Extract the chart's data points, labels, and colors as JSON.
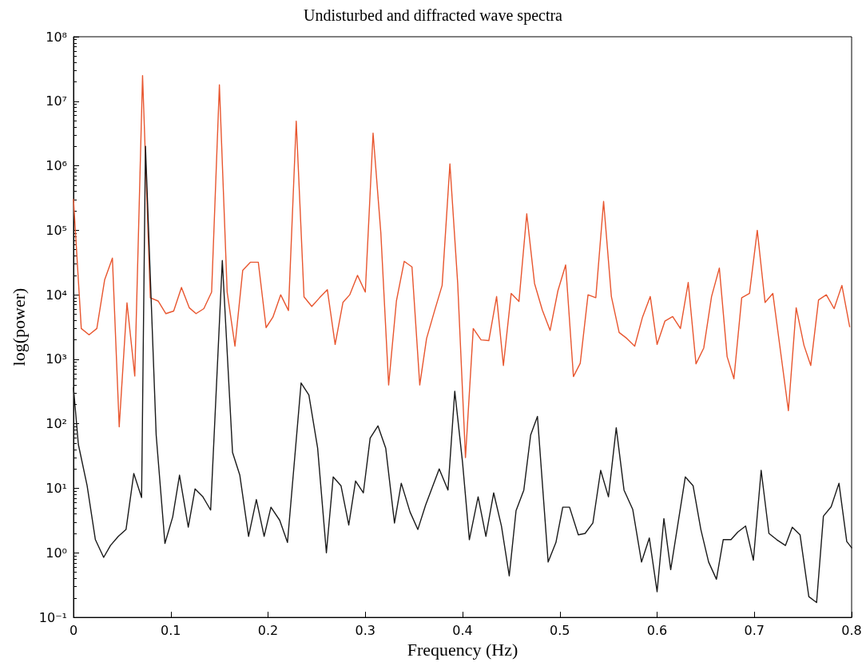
{
  "chart_data": {
    "type": "line",
    "title": "Undisturbed and diffracted wave spectra",
    "xlabel": "Frequency (Hz)",
    "ylabel": "log(power)",
    "log": "y",
    "grid": false,
    "marker": "none",
    "line_style": "solid",
    "xlim": [
      0,
      0.8
    ],
    "xticks": [
      0,
      0.1,
      0.2,
      0.3,
      0.4,
      0.5,
      0.6,
      0.7,
      0.8
    ],
    "ylim": [
      0.1,
      100000000
    ],
    "yticks": [
      {
        "value": 0.1,
        "label": "10⁻¹"
      },
      {
        "value": 1,
        "label": "10⁰"
      },
      {
        "value": 10,
        "label": "10¹"
      },
      {
        "value": 100,
        "label": "10²"
      },
      {
        "value": 1000,
        "label": "10³"
      },
      {
        "value": 10000,
        "label": "10⁴"
      },
      {
        "value": 100000,
        "label": "10⁵"
      },
      {
        "value": 1000000,
        "label": "10⁶"
      },
      {
        "value": 10000000,
        "label": "10⁷"
      },
      {
        "value": 100000000,
        "label": "10⁸"
      }
    ],
    "series": [
      {
        "color": "#e8562f",
        "x": [
          0,
          0.008,
          0.016,
          0.024,
          0.032,
          0.04,
          0.047,
          0.055,
          0.063,
          0.071,
          0.079,
          0.087,
          0.095,
          0.103,
          0.111,
          0.119,
          0.126,
          0.134,
          0.142,
          0.15,
          0.158,
          0.166,
          0.174,
          0.182,
          0.19,
          0.198,
          0.205,
          0.213,
          0.221,
          0.229,
          0.237,
          0.245,
          0.253,
          0.261,
          0.269,
          0.277,
          0.284,
          0.292,
          0.3,
          0.308,
          0.316,
          0.324,
          0.332,
          0.34,
          0.348,
          0.356,
          0.363,
          0.371,
          0.379,
          0.387,
          0.395,
          0.403,
          0.411,
          0.419,
          0.427,
          0.435,
          0.442,
          0.45,
          0.458,
          0.466,
          0.474,
          0.482,
          0.49,
          0.498,
          0.506,
          0.514,
          0.521,
          0.529,
          0.537,
          0.545,
          0.553,
          0.561,
          0.569,
          0.577,
          0.585,
          0.593,
          0.6,
          0.608,
          0.616,
          0.624,
          0.632,
          0.64,
          0.648,
          0.656,
          0.664,
          0.672,
          0.679,
          0.687,
          0.695,
          0.703,
          0.711,
          0.719,
          0.727,
          0.735,
          0.743,
          0.751,
          0.758,
          0.766,
          0.774,
          0.782,
          0.79,
          0.798
        ],
        "values": [
          300000,
          3000,
          2400,
          3000,
          17000,
          37000,
          90,
          7500,
          550,
          25000000,
          9000,
          8000,
          5100,
          5600,
          13000,
          6300,
          5100,
          6100,
          11000,
          18000000,
          11000,
          1600,
          24000,
          32000,
          32000,
          3100,
          4500,
          10000,
          5700,
          4900000,
          9300,
          6600,
          9000,
          12000,
          1700,
          7600,
          10000,
          20000,
          11000,
          3200000,
          90000,
          400,
          8000,
          33000,
          27000,
          400,
          2100,
          5500,
          14000,
          1070000,
          15000,
          30,
          3000,
          2000,
          1950,
          9400,
          800,
          10500,
          7900,
          180000,
          15000,
          5800,
          2800,
          11500,
          29000,
          540,
          870,
          10000,
          9000,
          280000,
          9400,
          2600,
          2100,
          1600,
          4500,
          9400,
          1700,
          3900,
          4600,
          3000,
          15500,
          850,
          1500,
          9400,
          26000,
          1100,
          500,
          9000,
          10500,
          100000,
          7600,
          10500,
          1300,
          160,
          6300,
          1650,
          800,
          8300,
          10000,
          6100,
          14000,
          3200
        ]
      },
      {
        "color": "#1a1a1a",
        "x": [
          0,
          0.005,
          0.014,
          0.0225,
          0.031,
          0.038,
          0.046,
          0.054,
          0.062,
          0.07,
          0.074,
          0.085,
          0.094,
          0.102,
          0.109,
          0.118,
          0.125,
          0.133,
          0.141,
          0.153,
          0.1635,
          0.171,
          0.18,
          0.188,
          0.196,
          0.203,
          0.212,
          0.22,
          0.234,
          0.242,
          0.251,
          0.26,
          0.267,
          0.275,
          0.283,
          0.29,
          0.298,
          0.305,
          0.313,
          0.321,
          0.33,
          0.337,
          0.346,
          0.354,
          0.362,
          0.376,
          0.385,
          0.392,
          0.4,
          0.407,
          0.416,
          0.424,
          0.432,
          0.44,
          0.448,
          0.455,
          0.463,
          0.47,
          0.477,
          0.488,
          0.496,
          0.503,
          0.51,
          0.519,
          0.526,
          0.534,
          0.542,
          0.55,
          0.558,
          0.566,
          0.575,
          0.584,
          0.592,
          0.6,
          0.607,
          0.614,
          0.629,
          0.637,
          0.645,
          0.653,
          0.661,
          0.668,
          0.676,
          0.683,
          0.691,
          0.699,
          0.707,
          0.715,
          0.723,
          0.732,
          0.739,
          0.747,
          0.756,
          0.764,
          0.771,
          0.779,
          0.787,
          0.795,
          0.8
        ],
        "values": [
          360,
          48,
          11,
          1.6,
          0.85,
          1.3,
          1.8,
          2.3,
          17,
          7.2,
          2000000,
          67,
          1.4,
          3.6,
          16,
          2.5,
          9.8,
          7.4,
          4.6,
          34000,
          36,
          16,
          1.8,
          6.7,
          1.8,
          5.1,
          3.2,
          1.45,
          430,
          280,
          42,
          1.0,
          15,
          11,
          2.7,
          13,
          8.5,
          60,
          93,
          42,
          2.9,
          12,
          4.3,
          2.3,
          5.5,
          20,
          9.4,
          320,
          25,
          1.6,
          7.4,
          1.8,
          8.5,
          2.6,
          0.44,
          4.5,
          9.4,
          67,
          130,
          0.72,
          1.45,
          5.1,
          5.1,
          1.9,
          2.0,
          2.9,
          19,
          7.4,
          87,
          9.4,
          4.7,
          0.72,
          1.7,
          0.25,
          3.4,
          0.55,
          15,
          11,
          2.3,
          0.72,
          0.39,
          1.6,
          1.6,
          2.1,
          2.6,
          0.77,
          19,
          2.0,
          1.6,
          1.3,
          2.5,
          1.9,
          0.21,
          0.17,
          3.7,
          5.2,
          12,
          1.5,
          1.2
        ]
      }
    ]
  }
}
